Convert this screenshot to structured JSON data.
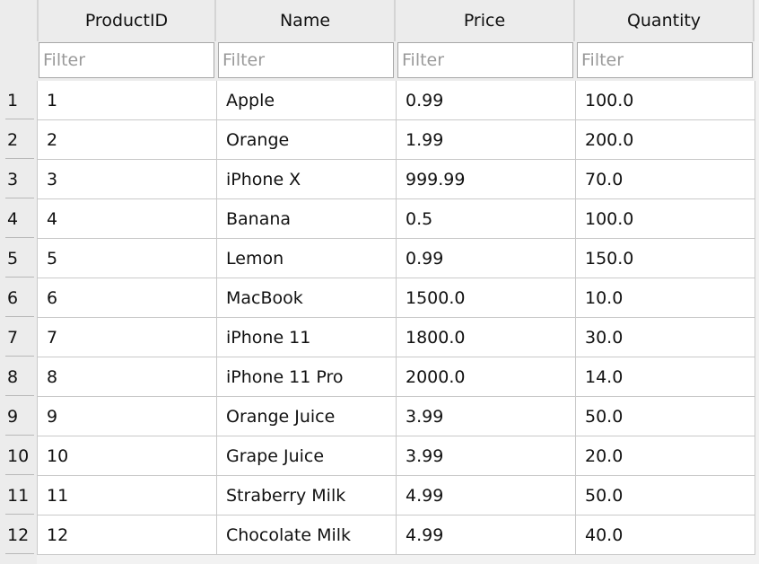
{
  "columns": [
    "ProductID",
    "Name",
    "Price",
    "Quantity"
  ],
  "filter_placeholder": "Filter",
  "rows": [
    {
      "num": "1",
      "cells": [
        "1",
        "Apple",
        "0.99",
        "100.0"
      ]
    },
    {
      "num": "2",
      "cells": [
        "2",
        "Orange",
        "1.99",
        "200.0"
      ]
    },
    {
      "num": "3",
      "cells": [
        "3",
        "iPhone X",
        "999.99",
        "70.0"
      ]
    },
    {
      "num": "4",
      "cells": [
        "4",
        "Banana",
        "0.5",
        "100.0"
      ]
    },
    {
      "num": "5",
      "cells": [
        "5",
        "Lemon",
        "0.99",
        "150.0"
      ]
    },
    {
      "num": "6",
      "cells": [
        "6",
        "MacBook",
        "1500.0",
        "10.0"
      ]
    },
    {
      "num": "7",
      "cells": [
        "7",
        "iPhone 11",
        "1800.0",
        "30.0"
      ]
    },
    {
      "num": "8",
      "cells": [
        "8",
        "iPhone 11 Pro",
        "2000.0",
        "14.0"
      ]
    },
    {
      "num": "9",
      "cells": [
        "9",
        "Orange Juice",
        "3.99",
        "50.0"
      ]
    },
    {
      "num": "10",
      "cells": [
        "10",
        "Grape Juice",
        "3.99",
        "20.0"
      ]
    },
    {
      "num": "11",
      "cells": [
        "11",
        "Straberry Milk",
        "4.99",
        "50.0"
      ]
    },
    {
      "num": "12",
      "cells": [
        "12",
        "Chocolate Milk",
        "4.99",
        "40.0"
      ]
    }
  ]
}
